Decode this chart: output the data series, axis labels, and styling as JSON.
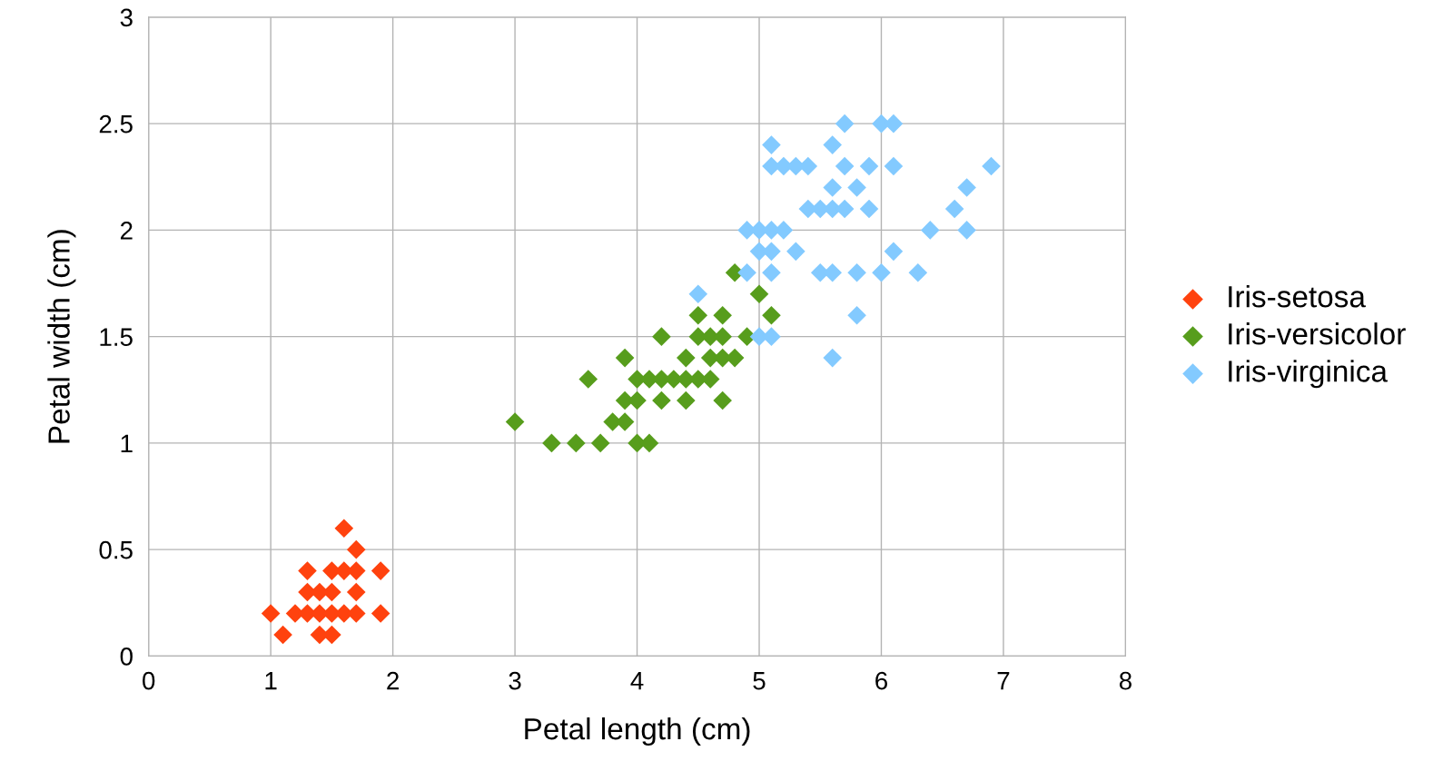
{
  "chart_data": {
    "type": "scatter",
    "xlabel": "Petal length (cm)",
    "ylabel": "Petal width (cm)",
    "xlim": [
      0,
      8
    ],
    "xticks": [
      0,
      1,
      2,
      3,
      4,
      5,
      6,
      7,
      8
    ],
    "ylim": [
      0,
      3
    ],
    "yticks": [
      0,
      0.5,
      1,
      1.5,
      2,
      2.5,
      3
    ],
    "grid": true,
    "legend": "right",
    "marker": "diamond",
    "series": [
      {
        "name": "Iris-setosa",
        "color": "#ff420e",
        "x": [
          1.3,
          1.5,
          1.6,
          1.7,
          1.9,
          1.3,
          1.4,
          1.5,
          1.7,
          1.0,
          1.2,
          1.3,
          1.4,
          1.5,
          1.6,
          1.7,
          1.9,
          1.1,
          1.4,
          1.5,
          1.7,
          1.6
        ],
        "values": [
          0.4,
          0.4,
          0.4,
          0.4,
          0.4,
          0.3,
          0.3,
          0.3,
          0.3,
          0.2,
          0.2,
          0.2,
          0.2,
          0.2,
          0.2,
          0.2,
          0.2,
          0.1,
          0.1,
          0.1,
          0.5,
          0.6
        ]
      },
      {
        "name": "Iris-versicolor",
        "color": "#579d1c",
        "x": [
          3.3,
          3.5,
          3.7,
          4.0,
          4.1,
          3.0,
          3.8,
          3.9,
          3.9,
          4.0,
          4.2,
          4.4,
          4.7,
          3.6,
          4.0,
          4.1,
          4.2,
          4.3,
          4.4,
          4.5,
          4.6,
          3.9,
          4.4,
          4.6,
          4.7,
          4.8,
          4.2,
          4.5,
          4.6,
          4.7,
          4.9,
          4.5,
          4.7,
          5.1,
          5.0,
          4.8
        ],
        "values": [
          1.0,
          1.0,
          1.0,
          1.0,
          1.0,
          1.1,
          1.1,
          1.1,
          1.2,
          1.2,
          1.2,
          1.2,
          1.2,
          1.3,
          1.3,
          1.3,
          1.3,
          1.3,
          1.3,
          1.3,
          1.3,
          1.4,
          1.4,
          1.4,
          1.4,
          1.4,
          1.5,
          1.5,
          1.5,
          1.5,
          1.5,
          1.6,
          1.6,
          1.6,
          1.7,
          1.8
        ]
      },
      {
        "name": "Iris-virginica",
        "color": "#83caff",
        "x": [
          5.6,
          5.0,
          5.1,
          5.8,
          4.5,
          4.9,
          5.1,
          5.5,
          5.6,
          5.8,
          6.0,
          6.3,
          5.0,
          5.1,
          5.3,
          6.1,
          4.9,
          5.0,
          5.1,
          5.2,
          6.4,
          6.7,
          5.4,
          5.5,
          5.6,
          5.7,
          5.9,
          6.6,
          5.6,
          5.8,
          6.7,
          5.1,
          5.2,
          5.3,
          5.4,
          5.7,
          5.9,
          6.1,
          6.9,
          5.1,
          5.6,
          5.7,
          6.0,
          6.1
        ],
        "values": [
          1.4,
          1.5,
          1.5,
          1.6,
          1.7,
          1.8,
          1.8,
          1.8,
          1.8,
          1.8,
          1.8,
          1.8,
          1.9,
          1.9,
          1.9,
          1.9,
          2.0,
          2.0,
          2.0,
          2.0,
          2.0,
          2.0,
          2.1,
          2.1,
          2.1,
          2.1,
          2.1,
          2.1,
          2.2,
          2.2,
          2.2,
          2.3,
          2.3,
          2.3,
          2.3,
          2.3,
          2.3,
          2.3,
          2.3,
          2.4,
          2.4,
          2.5,
          2.5,
          2.5
        ]
      }
    ]
  }
}
